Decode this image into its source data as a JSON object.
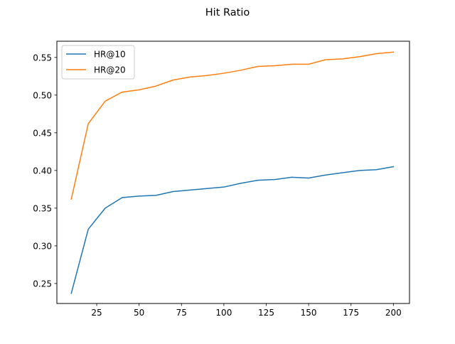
{
  "chart_data": {
    "type": "line",
    "title": "Hit Ratio",
    "xlabel": "",
    "ylabel": "",
    "xlim": [
      1.5,
      209.5
    ],
    "ylim": [
      0.2235,
      0.5715
    ],
    "xticks": [
      25,
      50,
      75,
      100,
      125,
      150,
      175,
      200
    ],
    "yticks": [
      0.25,
      0.3,
      0.35,
      0.4,
      0.45,
      0.5,
      0.55
    ],
    "x": [
      10,
      20,
      30,
      40,
      50,
      60,
      70,
      80,
      90,
      100,
      110,
      120,
      130,
      140,
      150,
      160,
      170,
      180,
      190,
      200
    ],
    "series": [
      {
        "name": "HR@10",
        "color": "#1f77b4",
        "values": [
          0.237,
          0.322,
          0.35,
          0.364,
          0.366,
          0.367,
          0.372,
          0.374,
          0.376,
          0.378,
          0.383,
          0.387,
          0.388,
          0.391,
          0.39,
          0.394,
          0.397,
          0.4,
          0.401,
          0.405
        ]
      },
      {
        "name": "HR@20",
        "color": "#ff7f0e",
        "values": [
          0.362,
          0.462,
          0.492,
          0.504,
          0.507,
          0.512,
          0.52,
          0.524,
          0.526,
          0.529,
          0.533,
          0.538,
          0.539,
          0.541,
          0.541,
          0.547,
          0.548,
          0.551,
          0.555,
          0.557
        ]
      }
    ],
    "legend": "top-left",
    "grid": false
  }
}
